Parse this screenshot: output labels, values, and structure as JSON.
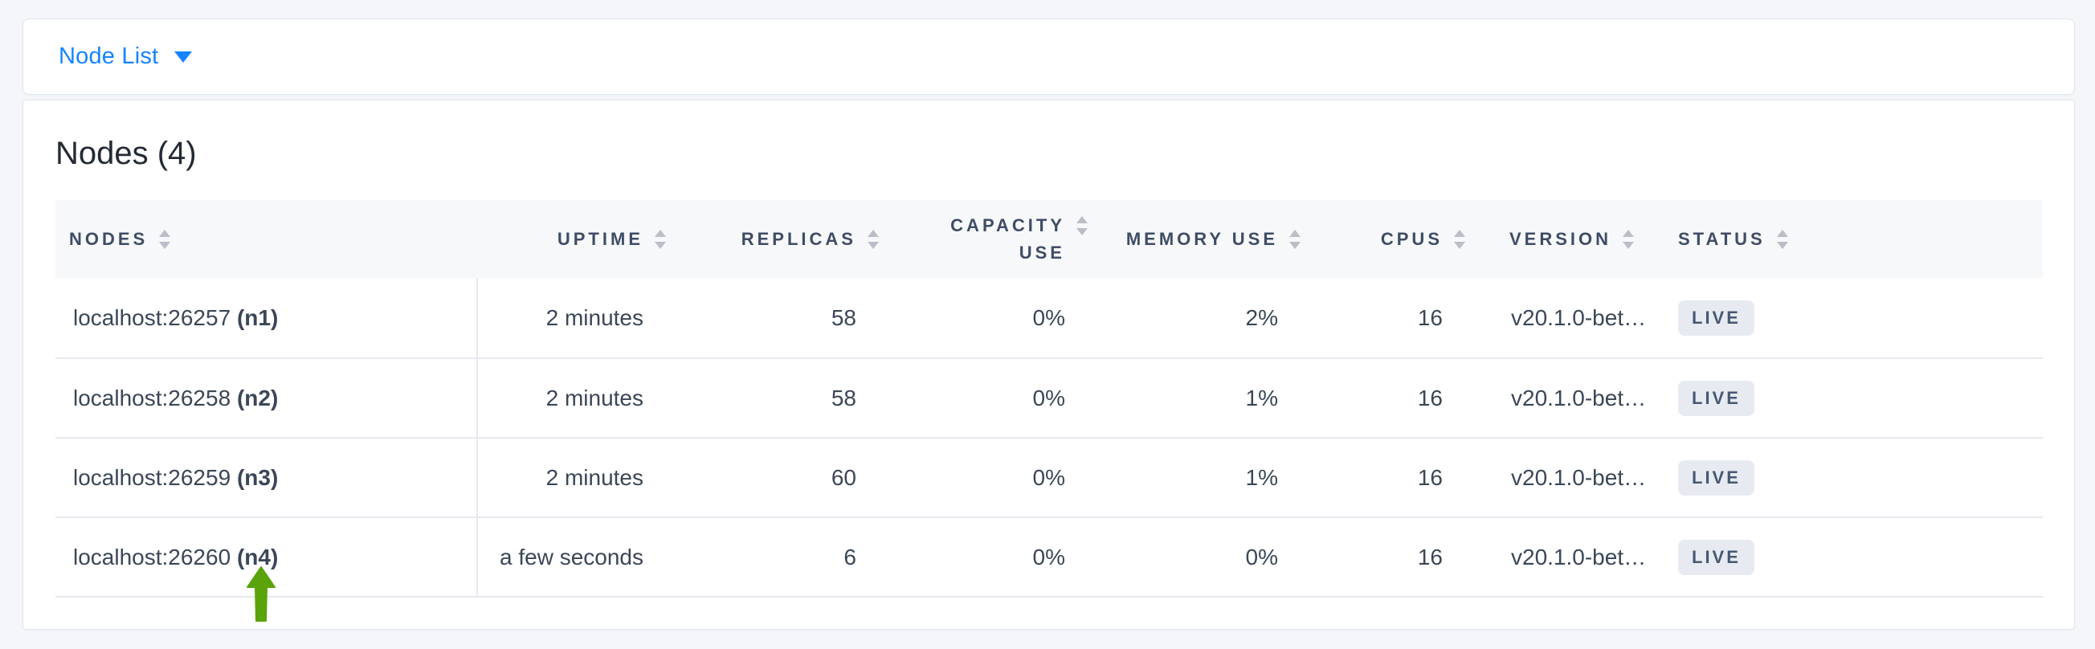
{
  "toolbar": {
    "view_selector": {
      "label": "Node List"
    }
  },
  "main": {
    "title": "Nodes (4)"
  },
  "table": {
    "columns": [
      {
        "key": "nodes",
        "label": "Nodes",
        "align": "left"
      },
      {
        "key": "uptime",
        "label": "Uptime",
        "align": "right"
      },
      {
        "key": "replicas",
        "label": "Replicas",
        "align": "right"
      },
      {
        "key": "capacity_use",
        "label": "Capacity Use",
        "align": "right"
      },
      {
        "key": "memory_use",
        "label": "Memory Use",
        "align": "right"
      },
      {
        "key": "cpus",
        "label": "CPUs",
        "align": "right"
      },
      {
        "key": "version",
        "label": "Version",
        "align": "left"
      },
      {
        "key": "status",
        "label": "Status",
        "align": "left"
      }
    ],
    "rows": [
      {
        "address": "localhost:26257",
        "node_id": "(n1)",
        "uptime": "2 minutes",
        "replicas": "58",
        "capacity_use": "0%",
        "memory_use": "2%",
        "cpus": "16",
        "version": "v20.1.0-bet…",
        "status": "LIVE"
      },
      {
        "address": "localhost:26258",
        "node_id": "(n2)",
        "uptime": "2 minutes",
        "replicas": "58",
        "capacity_use": "0%",
        "memory_use": "1%",
        "cpus": "16",
        "version": "v20.1.0-bet…",
        "status": "LIVE"
      },
      {
        "address": "localhost:26259",
        "node_id": "(n3)",
        "uptime": "2 minutes",
        "replicas": "60",
        "capacity_use": "0%",
        "memory_use": "1%",
        "cpus": "16",
        "version": "v20.1.0-bet…",
        "status": "LIVE"
      },
      {
        "address": "localhost:26260",
        "node_id": "(n4)",
        "uptime": "a few seconds",
        "replicas": "6",
        "capacity_use": "0%",
        "memory_use": "0%",
        "cpus": "16",
        "version": "v20.1.0-bet…",
        "status": "LIVE"
      }
    ]
  },
  "annotation": {
    "arrow_color": "#5aa30b"
  },
  "colors": {
    "accent_blue": "#1584ff",
    "page_background": "#f4f6fa",
    "card_background": "#ffffff",
    "table_header_background": "#f7f8f9",
    "header_text": "#3f4c66",
    "cell_text": "#3b4757",
    "row_border": "#e7eaf0",
    "badge_background": "#e7ebf1",
    "badge_text": "#475872",
    "sort_icon": "#b9bec7"
  }
}
